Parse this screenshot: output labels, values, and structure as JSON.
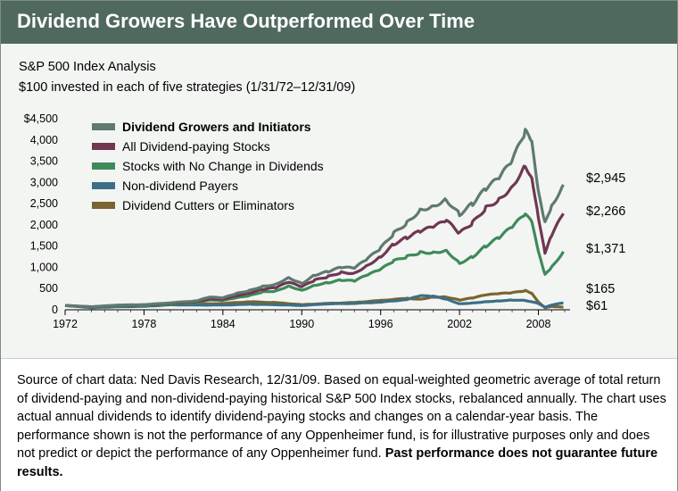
{
  "header": {
    "title": "Dividend Growers Have Outperformed Over Time"
  },
  "subtitle": {
    "line1": "S&P 500 Index Analysis",
    "line2": "$100 invested in each of five strategies (1/31/72–12/31/09)"
  },
  "footer": {
    "source_text": "Source of chart data: Ned Davis Research, 12/31/09. Based on equal-weighted geometric average of total return of dividend-paying and non-dividend-paying historical S&P 500 Index stocks, rebalanced annually. The chart uses actual annual dividends to identify dividend-paying stocks and changes on a calendar-year basis. The performance shown is not the performance of any Oppenheimer fund, is for illustrative purposes only and does not predict or depict the performance of any Oppenheimer fund.",
    "disclaimer": "Past performance does not guarantee future results."
  },
  "chart_data": {
    "type": "line",
    "title": "",
    "xlabel": "",
    "ylabel": "",
    "xlim": [
      1972,
      2010
    ],
    "ylim": [
      0,
      4500
    ],
    "yticks": [
      0,
      500,
      1000,
      1500,
      2000,
      2500,
      3000,
      3500,
      4000,
      4500
    ],
    "ytick_labels": [
      "0",
      "500",
      "1,000",
      "1,500",
      "2,000",
      "2,500",
      "3,000",
      "3,500",
      "4,000",
      "$4,500"
    ],
    "xticks": [
      1972,
      1978,
      1984,
      1990,
      1996,
      2002,
      2008
    ],
    "xtick_labels": [
      "1972",
      "1978",
      "1984",
      "1990",
      "1996",
      "2002",
      "2008"
    ],
    "grid": false,
    "legend_position": "top-left",
    "series": [
      {
        "name": "Dividend Growers and Initiators",
        "color": "#5f7a70",
        "end_label": "$2,945",
        "points": [
          [
            1972,
            100
          ],
          [
            1974,
            70
          ],
          [
            1976,
            110
          ],
          [
            1978,
            120
          ],
          [
            1980,
            165
          ],
          [
            1982,
            210
          ],
          [
            1983,
            300
          ],
          [
            1984,
            280
          ],
          [
            1985,
            380
          ],
          [
            1986,
            450
          ],
          [
            1987,
            550
          ],
          [
            1988,
            600
          ],
          [
            1989,
            760
          ],
          [
            1990,
            620
          ],
          [
            1991,
            820
          ],
          [
            1992,
            900
          ],
          [
            1993,
            1000
          ],
          [
            1994,
            980
          ],
          [
            1995,
            1200
          ],
          [
            1996,
            1450
          ],
          [
            1997,
            1800
          ],
          [
            1998,
            2050
          ],
          [
            1999,
            2350
          ],
          [
            2000,
            2450
          ],
          [
            2001,
            2600
          ],
          [
            2002,
            2250
          ],
          [
            2003,
            2500
          ],
          [
            2004,
            2850
          ],
          [
            2005,
            3100
          ],
          [
            2006,
            3500
          ],
          [
            2007,
            4200
          ],
          [
            2007.5,
            3900
          ],
          [
            2008,
            2750
          ],
          [
            2008.5,
            2050
          ],
          [
            2009,
            2450
          ],
          [
            2009.9,
            2945
          ]
        ]
      },
      {
        "name": "All Dividend-paying Stocks",
        "color": "#6f3752",
        "end_label": "$2,266",
        "points": [
          [
            1972,
            100
          ],
          [
            1974,
            70
          ],
          [
            1976,
            105
          ],
          [
            1978,
            115
          ],
          [
            1980,
            150
          ],
          [
            1982,
            190
          ],
          [
            1983,
            260
          ],
          [
            1984,
            250
          ],
          [
            1985,
            330
          ],
          [
            1986,
            390
          ],
          [
            1987,
            480
          ],
          [
            1988,
            520
          ],
          [
            1989,
            650
          ],
          [
            1990,
            540
          ],
          [
            1991,
            700
          ],
          [
            1992,
            780
          ],
          [
            1993,
            880
          ],
          [
            1994,
            860
          ],
          [
            1995,
            1050
          ],
          [
            1996,
            1250
          ],
          [
            1997,
            1550
          ],
          [
            1998,
            1700
          ],
          [
            1999,
            1850
          ],
          [
            2000,
            1950
          ],
          [
            2001,
            2100
          ],
          [
            2002,
            1800
          ],
          [
            2003,
            2050
          ],
          [
            2004,
            2400
          ],
          [
            2005,
            2600
          ],
          [
            2006,
            2900
          ],
          [
            2007,
            3400
          ],
          [
            2007.5,
            3150
          ],
          [
            2008,
            2200
          ],
          [
            2008.5,
            1350
          ],
          [
            2009,
            1750
          ],
          [
            2009.9,
            2266
          ]
        ]
      },
      {
        "name": "Stocks with No Change in Dividends",
        "color": "#3f8a5a",
        "end_label": "$1,371",
        "points": [
          [
            1972,
            100
          ],
          [
            1974,
            65
          ],
          [
            1976,
            95
          ],
          [
            1978,
            105
          ],
          [
            1980,
            130
          ],
          [
            1982,
            165
          ],
          [
            1983,
            230
          ],
          [
            1984,
            220
          ],
          [
            1985,
            280
          ],
          [
            1986,
            330
          ],
          [
            1987,
            420
          ],
          [
            1988,
            440
          ],
          [
            1989,
            560
          ],
          [
            1990,
            460
          ],
          [
            1991,
            580
          ],
          [
            1992,
            640
          ],
          [
            1993,
            700
          ],
          [
            1994,
            680
          ],
          [
            1995,
            820
          ],
          [
            1996,
            950
          ],
          [
            1997,
            1150
          ],
          [
            1998,
            1250
          ],
          [
            1999,
            1350
          ],
          [
            2000,
            1350
          ],
          [
            2001,
            1400
          ],
          [
            2002,
            1100
          ],
          [
            2003,
            1250
          ],
          [
            2004,
            1500
          ],
          [
            2005,
            1700
          ],
          [
            2006,
            1950
          ],
          [
            2007,
            2250
          ],
          [
            2007.5,
            2050
          ],
          [
            2008,
            1350
          ],
          [
            2008.5,
            820
          ],
          [
            2009,
            1000
          ],
          [
            2009.9,
            1371
          ]
        ]
      },
      {
        "name": "Non-dividend Payers",
        "color": "#3c6f86",
        "end_label": "$165",
        "points": [
          [
            1972,
            100
          ],
          [
            1974,
            50
          ],
          [
            1976,
            70
          ],
          [
            1978,
            80
          ],
          [
            1980,
            115
          ],
          [
            1982,
            110
          ],
          [
            1984,
            110
          ],
          [
            1986,
            130
          ],
          [
            1988,
            120
          ],
          [
            1990,
            100
          ],
          [
            1992,
            140
          ],
          [
            1994,
            150
          ],
          [
            1996,
            180
          ],
          [
            1998,
            240
          ],
          [
            1999,
            330
          ],
          [
            2000,
            320
          ],
          [
            2001,
            250
          ],
          [
            2002,
            140
          ],
          [
            2003,
            160
          ],
          [
            2004,
            190
          ],
          [
            2005,
            210
          ],
          [
            2006,
            230
          ],
          [
            2007,
            220
          ],
          [
            2008,
            150
          ],
          [
            2008.5,
            60
          ],
          [
            2009,
            110
          ],
          [
            2009.9,
            165
          ]
        ]
      },
      {
        "name": "Dividend Cutters or Eliminators",
        "color": "#7a6430",
        "end_label": "$61",
        "points": [
          [
            1972,
            100
          ],
          [
            1974,
            60
          ],
          [
            1976,
            90
          ],
          [
            1978,
            100
          ],
          [
            1980,
            140
          ],
          [
            1982,
            130
          ],
          [
            1984,
            150
          ],
          [
            1986,
            190
          ],
          [
            1988,
            170
          ],
          [
            1990,
            120
          ],
          [
            1992,
            150
          ],
          [
            1994,
            170
          ],
          [
            1996,
            220
          ],
          [
            1998,
            270
          ],
          [
            1999,
            250
          ],
          [
            2000,
            300
          ],
          [
            2001,
            300
          ],
          [
            2002,
            230
          ],
          [
            2003,
            280
          ],
          [
            2004,
            350
          ],
          [
            2005,
            380
          ],
          [
            2006,
            400
          ],
          [
            2007,
            450
          ],
          [
            2007.5,
            380
          ],
          [
            2008,
            180
          ],
          [
            2008.5,
            50
          ],
          [
            2009,
            80
          ],
          [
            2009.9,
            61
          ]
        ]
      }
    ]
  }
}
